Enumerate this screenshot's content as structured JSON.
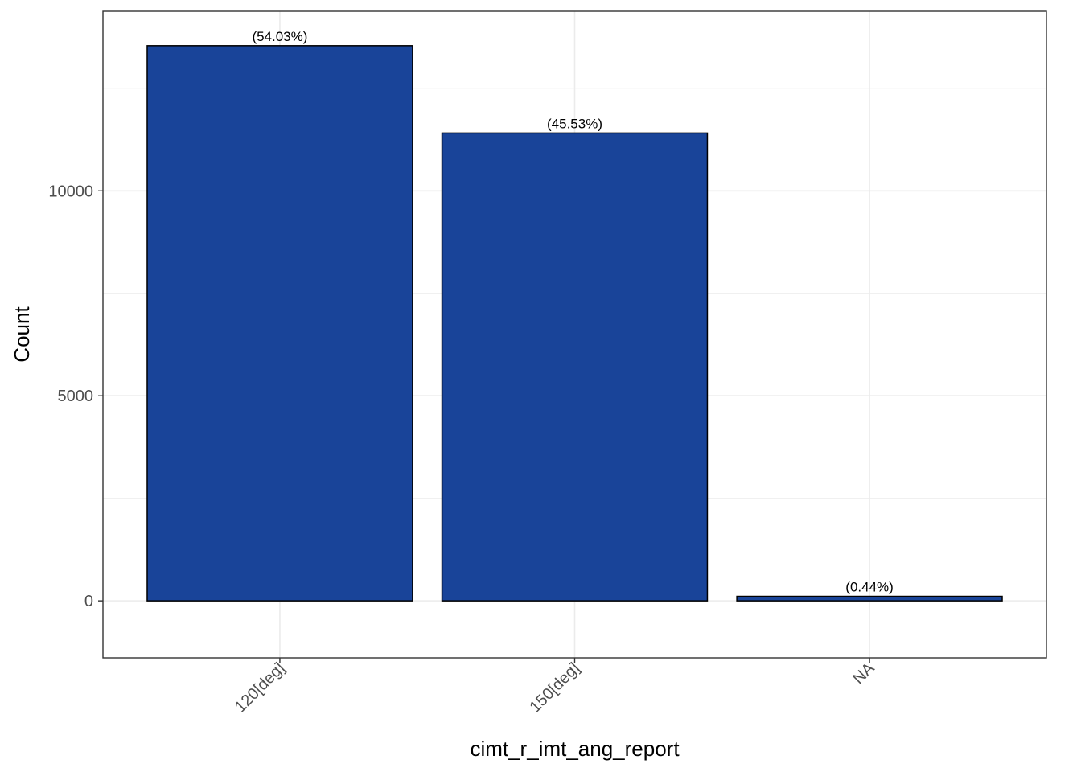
{
  "chart_data": {
    "type": "bar",
    "title": "",
    "xlabel": "cimt_r_imt_ang_report",
    "ylabel": "Count",
    "categories": [
      "120[deg]",
      "150[deg]",
      "NA"
    ],
    "values": [
      13540,
      11410,
      110
    ],
    "data_labels": [
      "(54.03%)",
      "(45.53%)",
      "(0.44%)"
    ],
    "yticks": [
      0,
      5000,
      10000
    ],
    "ytick_labels": [
      "0",
      "5000",
      "10000"
    ],
    "ylim": [
      -1390,
      14380
    ],
    "grid": true,
    "legend": "none",
    "colors": {
      "bar_fill": "#194499",
      "bar_outline": "#000000",
      "grid": "#ebebeb",
      "panel_border": "#333333",
      "tick_text": "#4d4d4d"
    }
  }
}
